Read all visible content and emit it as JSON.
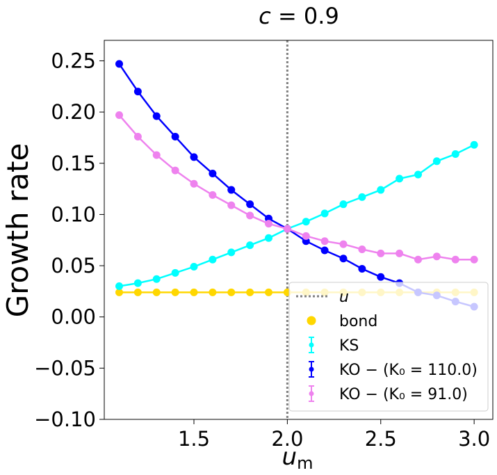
{
  "chart_data": {
    "type": "line",
    "title": "c = 0.9",
    "xlabel": "u_m",
    "ylabel": "Growth rate",
    "xlim": [
      1.02,
      3.1
    ],
    "ylim": [
      -0.1,
      0.27
    ],
    "xticks": [
      1.5,
      2.0,
      2.5,
      3.0
    ],
    "xtick_labels": [
      "1.5",
      "2.0",
      "2.5",
      "3.0"
    ],
    "yticks": [
      -0.1,
      -0.05,
      0.0,
      0.05,
      0.1,
      0.15,
      0.2,
      0.25
    ],
    "ytick_labels": [
      "−0.10",
      "−0.05",
      "0.00",
      "0.05",
      "0.10",
      "0.15",
      "0.20",
      "0.25"
    ],
    "vline": {
      "x": 2.0,
      "label": "u",
      "color": "#808080"
    },
    "x": [
      1.1,
      1.2,
      1.3,
      1.4,
      1.5,
      1.6,
      1.7,
      1.8,
      1.9,
      2.0,
      2.1,
      2.2,
      2.3,
      2.4,
      2.5,
      2.6,
      2.7,
      2.8,
      2.9,
      3.0
    ],
    "series": [
      {
        "name": "bond",
        "color": "#ffd700",
        "line": true,
        "values": [
          0.024,
          0.024,
          0.024,
          0.024,
          0.024,
          0.024,
          0.024,
          0.024,
          0.024,
          0.024,
          0.024,
          0.024,
          0.024,
          0.024,
          0.024,
          0.024,
          0.024,
          0.024,
          0.024,
          0.024
        ]
      },
      {
        "name": "KS",
        "color": "#00ffff",
        "line": true,
        "values": [
          0.03,
          0.033,
          0.037,
          0.043,
          0.049,
          0.056,
          0.063,
          0.07,
          0.077,
          0.086,
          0.093,
          0.101,
          0.11,
          0.117,
          0.124,
          0.135,
          0.139,
          0.152,
          0.159,
          0.168
        ]
      },
      {
        "name": "KO − (K₀ = 110.0)",
        "color": "#0000ff",
        "line": true,
        "values": [
          0.247,
          0.22,
          0.196,
          0.176,
          0.156,
          0.14,
          0.124,
          0.11,
          0.096,
          0.086,
          0.074,
          0.065,
          0.057,
          0.047,
          0.039,
          0.033,
          0.024,
          0.021,
          0.015,
          0.01
        ]
      },
      {
        "name": "KO − (K₀ = 91.0)",
        "color": "#ee82ee",
        "line": true,
        "values": [
          0.197,
          0.176,
          0.158,
          0.143,
          0.13,
          0.119,
          0.109,
          0.099,
          0.091,
          0.086,
          0.079,
          0.074,
          0.071,
          0.066,
          0.062,
          0.062,
          0.056,
          0.059,
          0.056,
          0.056
        ]
      }
    ],
    "legend": {
      "placement": "lower-right",
      "entries": [
        {
          "label": "u",
          "kind": "vline",
          "color": "#808080"
        },
        {
          "label": "bond",
          "kind": "marker",
          "color": "#ffd700"
        },
        {
          "label": "KS",
          "kind": "errorbar",
          "color": "#00ffff"
        },
        {
          "label": "KO − (K₀ = 110.0)",
          "kind": "errorbar",
          "color": "#0000ff"
        },
        {
          "label": "KO − (K₀ = 91.0)",
          "kind": "errorbar",
          "color": "#ee82ee"
        }
      ]
    }
  }
}
